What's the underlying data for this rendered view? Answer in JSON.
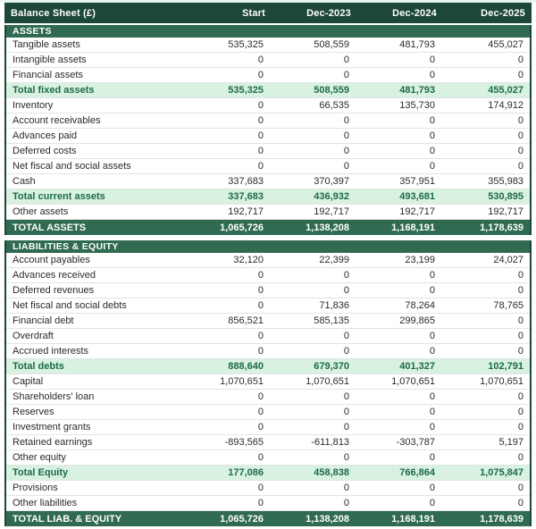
{
  "table": {
    "title": "Balance Sheet (£)",
    "columns": [
      "Start",
      "Dec-2023",
      "Dec-2024",
      "Dec-2025"
    ],
    "sections": [
      {
        "id": "assets",
        "header": "ASSETS",
        "rows": [
          {
            "label": "Tangible assets",
            "style": "normal",
            "values": [
              "535,325",
              "508,559",
              "481,793",
              "455,027"
            ]
          },
          {
            "label": "Intangible assets",
            "style": "normal",
            "values": [
              "0",
              "0",
              "0",
              "0"
            ]
          },
          {
            "label": "Financial assets",
            "style": "normal",
            "values": [
              "0",
              "0",
              "0",
              "0"
            ]
          },
          {
            "label": "Total fixed assets",
            "style": "subtotal",
            "values": [
              "535,325",
              "508,559",
              "481,793",
              "455,027"
            ]
          },
          {
            "label": "Inventory",
            "style": "normal",
            "values": [
              "0",
              "66,535",
              "135,730",
              "174,912"
            ]
          },
          {
            "label": "Account receivables",
            "style": "normal",
            "values": [
              "0",
              "0",
              "0",
              "0"
            ]
          },
          {
            "label": "Advances paid",
            "style": "normal",
            "values": [
              "0",
              "0",
              "0",
              "0"
            ]
          },
          {
            "label": "Deferred costs",
            "style": "normal",
            "values": [
              "0",
              "0",
              "0",
              "0"
            ]
          },
          {
            "label": "Net fiscal and social assets",
            "style": "normal",
            "values": [
              "0",
              "0",
              "0",
              "0"
            ]
          },
          {
            "label": "Cash",
            "style": "normal",
            "values": [
              "337,683",
              "370,397",
              "357,951",
              "355,983"
            ]
          },
          {
            "label": "Total current assets",
            "style": "subtotal",
            "values": [
              "337,683",
              "436,932",
              "493,681",
              "530,895"
            ]
          },
          {
            "label": "Other assets",
            "style": "normal",
            "values": [
              "192,717",
              "192,717",
              "192,717",
              "192,717"
            ]
          }
        ],
        "total": {
          "label": "TOTAL ASSETS",
          "values": [
            "1,065,726",
            "1,138,208",
            "1,168,191",
            "1,178,639"
          ]
        }
      },
      {
        "id": "liabilities-equity",
        "header": "LIABILITIES & EQUITY",
        "rows": [
          {
            "label": "Account payables",
            "style": "normal",
            "values": [
              "32,120",
              "22,399",
              "23,199",
              "24,027"
            ]
          },
          {
            "label": "Advances received",
            "style": "normal",
            "values": [
              "0",
              "0",
              "0",
              "0"
            ]
          },
          {
            "label": "Deferred revenues",
            "style": "normal",
            "values": [
              "0",
              "0",
              "0",
              "0"
            ]
          },
          {
            "label": "Net fiscal and social debts",
            "style": "normal",
            "values": [
              "0",
              "71,836",
              "78,264",
              "78,765"
            ]
          },
          {
            "label": "Financial debt",
            "style": "normal",
            "values": [
              "856,521",
              "585,135",
              "299,865",
              "0"
            ]
          },
          {
            "label": "Overdraft",
            "style": "normal",
            "values": [
              "0",
              "0",
              "0",
              "0"
            ]
          },
          {
            "label": "Accrued interests",
            "style": "normal",
            "values": [
              "0",
              "0",
              "0",
              "0"
            ]
          },
          {
            "label": "Total debts",
            "style": "subtotal",
            "values": [
              "888,640",
              "679,370",
              "401,327",
              "102,791"
            ]
          },
          {
            "label": "Capital",
            "style": "normal",
            "values": [
              "1,070,651",
              "1,070,651",
              "1,070,651",
              "1,070,651"
            ]
          },
          {
            "label": "Shareholders' loan",
            "style": "normal",
            "values": [
              "0",
              "0",
              "0",
              "0"
            ]
          },
          {
            "label": "Reserves",
            "style": "normal",
            "values": [
              "0",
              "0",
              "0",
              "0"
            ]
          },
          {
            "label": "Investment grants",
            "style": "normal",
            "values": [
              "0",
              "0",
              "0",
              "0"
            ]
          },
          {
            "label": "Retained earnings",
            "style": "normal",
            "values": [
              "-893,565",
              "-611,813",
              "-303,787",
              "5,197"
            ]
          },
          {
            "label": "Other equity",
            "style": "normal",
            "values": [
              "0",
              "0",
              "0",
              "0"
            ]
          },
          {
            "label": "Total Equity",
            "style": "subtotal",
            "values": [
              "177,086",
              "458,838",
              "766,864",
              "1,075,847"
            ]
          },
          {
            "label": "Provisions",
            "style": "normal",
            "values": [
              "0",
              "0",
              "0",
              "0"
            ]
          },
          {
            "label": "Other liabilities",
            "style": "normal",
            "values": [
              "0",
              "0",
              "0",
              "0"
            ]
          }
        ],
        "total": {
          "label": "TOTAL LIAB. & EQUITY",
          "values": [
            "1,065,726",
            "1,138,208",
            "1,168,191",
            "1,178,639"
          ]
        }
      }
    ]
  },
  "colors": {
    "header_bg": "#1d4737",
    "section_bar_bg": "#2f6a51",
    "total_row_bg": "#2f6a51",
    "subtotal_row_bg": "#d9f1e1",
    "subtotal_text": "#1c6b4a",
    "header_text": "#ffffff",
    "body_text": "#2b2b2b",
    "row_separator": "#e0e6e2",
    "table_border": "#1d4737",
    "top_strip_bg": "#e9f4ee"
  }
}
